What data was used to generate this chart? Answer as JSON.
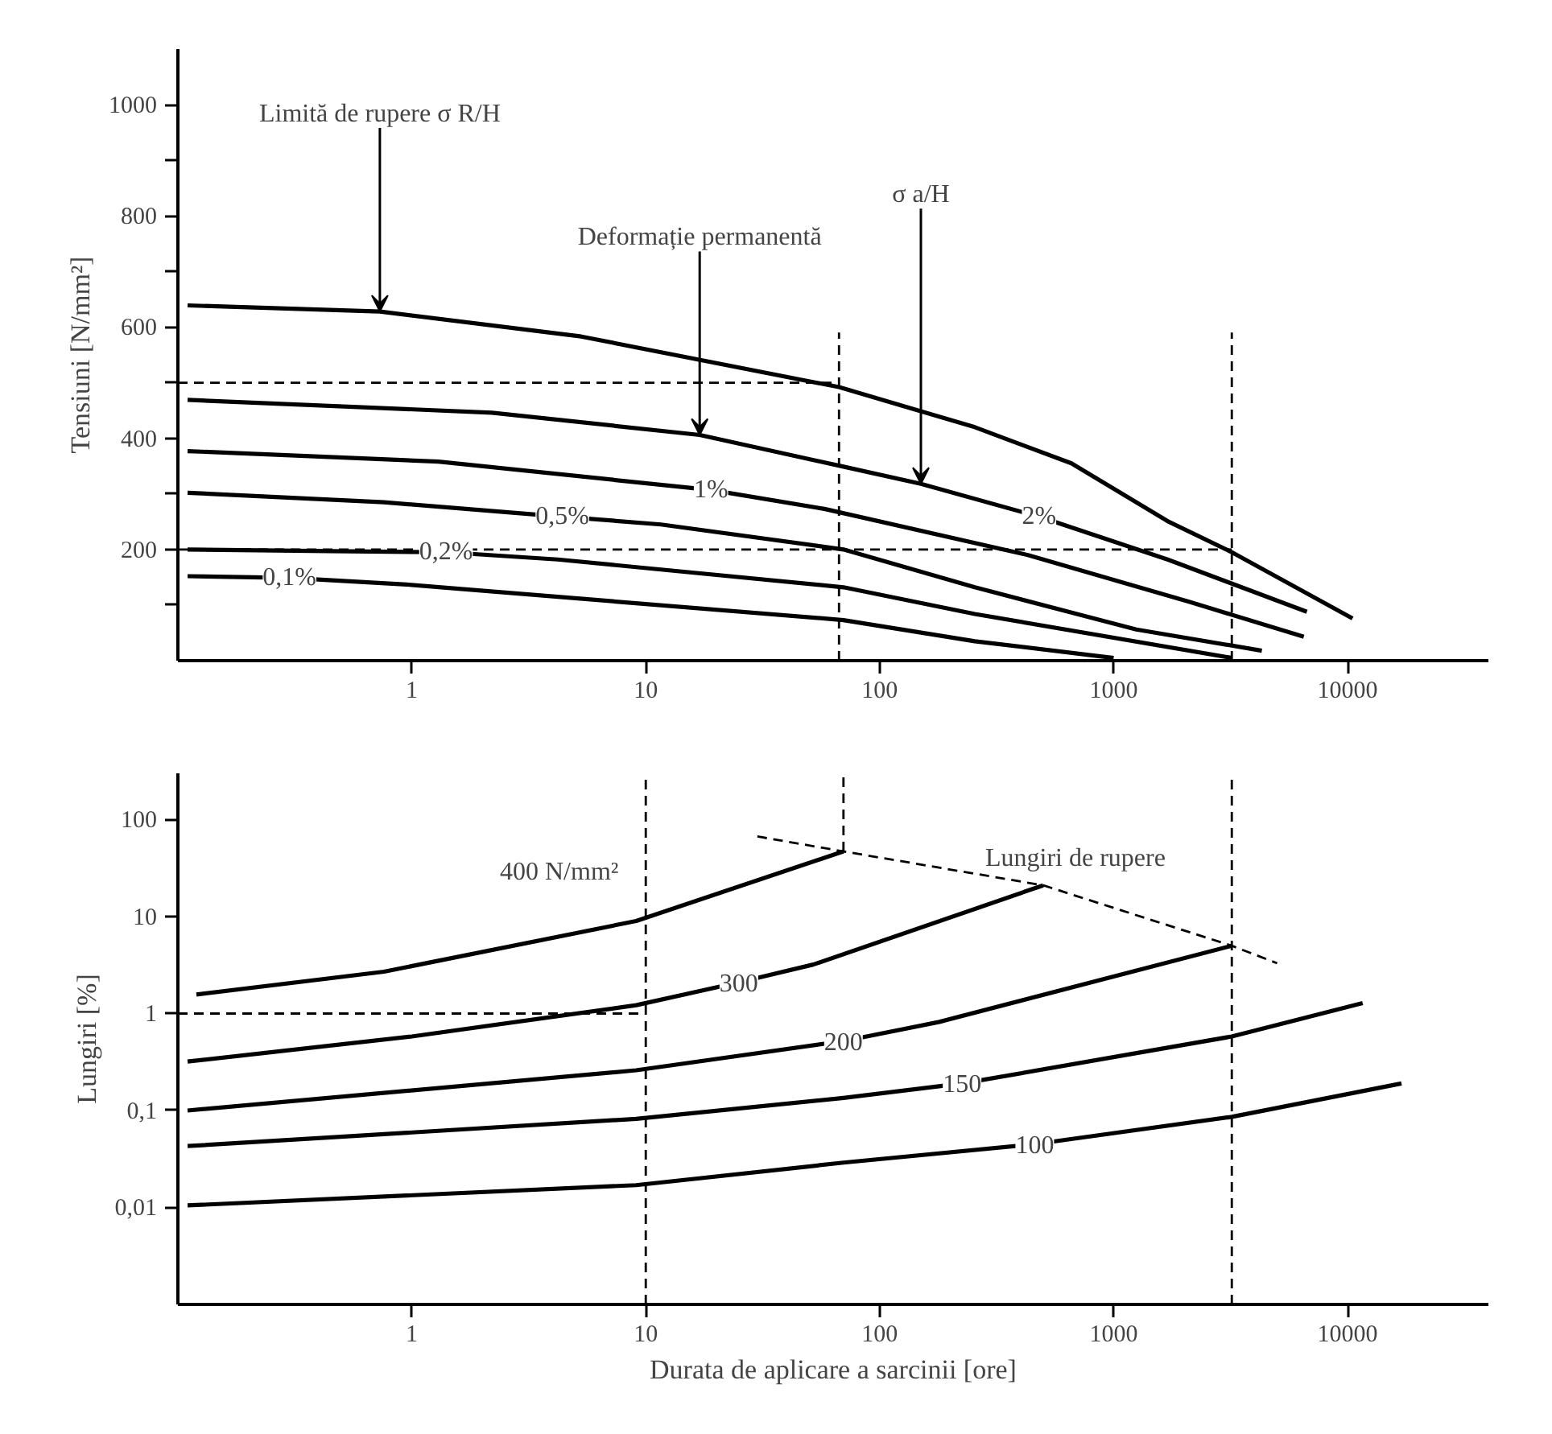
{
  "chart_data": [
    {
      "type": "line",
      "ylabel": "Tensiuni [N/mm²]",
      "log": "x",
      "xlim": [
        0.1,
        40000
      ],
      "ylim": [
        0,
        1100
      ],
      "xticks": [
        1,
        10,
        100,
        1000,
        10000
      ],
      "yticks": [
        {
          "value": 100,
          "label": null
        },
        200,
        {
          "value": 300,
          "label": null
        },
        400,
        {
          "value": 500,
          "label": null
        },
        600,
        {
          "value": 700,
          "label": null
        },
        800,
        {
          "value": 900,
          "label": null
        },
        1000
      ],
      "series": [
        {
          "color": "#000000",
          "x": [
            0.11,
            0.73,
            5.3,
            67,
            255,
            660,
            1700,
            3200,
            6000,
            10500
          ],
          "values": [
            639,
            628,
            583,
            492,
            420,
            355,
            251,
            195,
            132,
            76
          ]
        },
        {
          "color": "#000000",
          "x": [
            0.11,
            2.2,
            17,
            70,
            150,
            480,
            1700,
            6700
          ],
          "values": [
            469,
            446,
            406,
            349,
            318,
            259,
            182,
            88
          ]
        },
        {
          "color": "#000000",
          "x": [
            0.11,
            1.3,
            19,
            58,
            430,
            2100,
            6500
          ],
          "values": [
            377,
            358,
            307,
            273,
            190,
            106,
            43
          ]
        },
        {
          "color": "#000000",
          "x": [
            0.11,
            0.76,
            4.4,
            11.6,
            70,
            255,
            1250,
            4300
          ],
          "values": [
            302,
            285,
            259,
            245,
            200,
            132,
            56,
            18
          ]
        },
        {
          "color": "#000000",
          "x": [
            0.11,
            0.45,
            1.4,
            4.2,
            70,
            255,
            3200
          ],
          "values": [
            200,
            197,
            195,
            182,
            132,
            84,
            5
          ]
        },
        {
          "color": "#000000",
          "x": [
            0.11,
            0.3,
            0.95,
            70,
            255,
            1000
          ],
          "values": [
            152,
            149,
            137,
            73,
            35,
            5
          ]
        },
        {
          "color": "#000000",
          "line_style": "dashed",
          "x": [
            0.1,
            67
          ],
          "values": [
            500,
            500
          ]
        },
        {
          "color": "#000000",
          "line_style": "dashed",
          "x": [
            0.1,
            3200
          ],
          "values": [
            200,
            200
          ]
        },
        {
          "color": "#000000",
          "line_style": "dashed",
          "x": [
            67,
            67
          ],
          "values": [
            0,
            590
          ]
        },
        {
          "color": "#000000",
          "line_style": "dashed",
          "x": [
            3200,
            3200
          ],
          "values": [
            0,
            590
          ]
        }
      ],
      "annotations": [
        {
          "text": "Limită de rupere σ R/H",
          "x": 0.73,
          "y": 628
        },
        {
          "text": "Deformație permanentă",
          "x": 17,
          "y": 406
        },
        {
          "text": "σ a/H",
          "x": 150,
          "y": 318
        },
        {
          "text": "0,1%",
          "x": 0.3,
          "y": 149
        },
        {
          "text": "0,2%",
          "x": 1.4,
          "y": 195
        },
        {
          "text": "0,5%",
          "x": 4.4,
          "y": 259
        },
        {
          "text": "1%",
          "x": 19,
          "y": 307
        },
        {
          "text": "2%",
          "x": 480,
          "y": 259
        }
      ]
    },
    {
      "type": "line",
      "ylabel": "Lungiri [%]",
      "xlabel": "Durata de aplicare a sarcinii [ore]",
      "log": "xy",
      "xlim": [
        0.1,
        40000
      ],
      "ylim": [
        0.001,
        300
      ],
      "xticks": [
        1,
        10,
        100,
        1000,
        10000
      ],
      "yticks": [
        {
          "value": 0.01,
          "label": "0,01"
        },
        {
          "value": 0.1,
          "label": "0,1"
        },
        1,
        10,
        100
      ],
      "series": [
        {
          "color": "#000000",
          "x": [
            0.12,
            0.76,
            9.1,
            70
          ],
          "values": [
            1.57,
            2.7,
            9.0,
            47
          ]
        },
        {
          "color": "#000000",
          "x": [
            0.11,
            1,
            9.1,
            25,
            52,
            500
          ],
          "values": [
            0.32,
            0.58,
            1.22,
            2.1,
            3.2,
            21
          ]
        },
        {
          "color": "#000000",
          "x": [
            0.11,
            9.1,
            70,
            180,
            3200
          ],
          "values": [
            0.1,
            0.26,
            0.52,
            0.82,
            5
          ]
        },
        {
          "color": "#000000",
          "x": [
            0.11,
            9.1,
            70,
            225,
            3200,
            11600
          ],
          "values": [
            0.043,
            0.082,
            0.135,
            0.19,
            0.58,
            1.28
          ]
        },
        {
          "color": "#000000",
          "x": [
            0.11,
            9.1,
            70,
            460,
            3200,
            17000
          ],
          "values": [
            0.0105,
            0.017,
            0.029,
            0.045,
            0.086,
            0.19
          ]
        },
        {
          "color": "#000000",
          "line_style": "dashed",
          "x": [
            30,
            70,
            500,
            3200,
            5000
          ],
          "values": [
            67,
            47,
            21,
            5,
            3.3
          ]
        },
        {
          "color": "#000000",
          "line_style": "dashed",
          "x": [
            0.1,
            10
          ],
          "values": [
            1,
            1
          ]
        },
        {
          "color": "#000000",
          "line_style": "dashed",
          "x": [
            10,
            10
          ],
          "values": [
            0.001,
            300
          ]
        },
        {
          "color": "#000000",
          "line_style": "dashed",
          "x": [
            70,
            70
          ],
          "values": [
            47,
            300
          ]
        },
        {
          "color": "#000000",
          "line_style": "dashed",
          "x": [
            3200,
            3200
          ],
          "values": [
            0.001,
            300
          ]
        }
      ],
      "annotations": [
        "400 N/mm²",
        {
          "text": "300",
          "x": 25,
          "y": 2.1
        },
        {
          "text": "200",
          "x": 70,
          "y": 0.52
        },
        {
          "text": "150",
          "x": 225,
          "y": 0.19
        },
        {
          "text": "100",
          "x": 460,
          "y": 0.045
        },
        {
          "text": "Lungiri de rupere",
          "x": 500,
          "y": 21
        }
      ]
    }
  ]
}
